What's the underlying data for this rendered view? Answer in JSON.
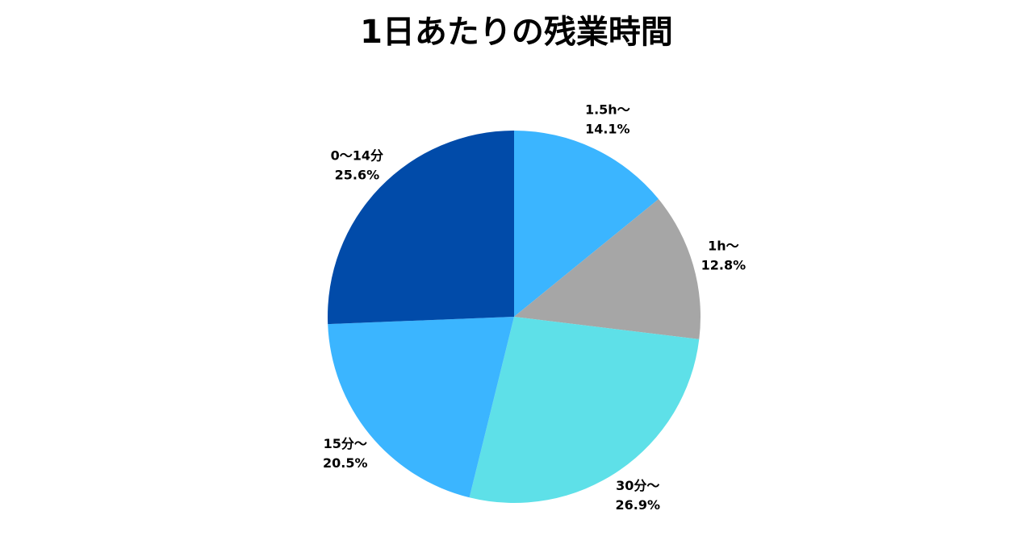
{
  "chart_data": {
    "type": "pie",
    "title": "1日あたりの残業時間",
    "categories": [
      "1.5h〜",
      "1h〜",
      "30分〜",
      "15分〜",
      "0〜14分"
    ],
    "values": [
      14.1,
      12.8,
      26.9,
      20.5,
      25.6
    ],
    "value_labels": [
      "14.1%",
      "12.8%",
      "26.9%",
      "20.5%",
      "25.6%"
    ],
    "colors": [
      "#3bb5ff",
      "#a6a6a6",
      "#5ee0e8",
      "#3bb5ff",
      "#014ba9"
    ]
  }
}
